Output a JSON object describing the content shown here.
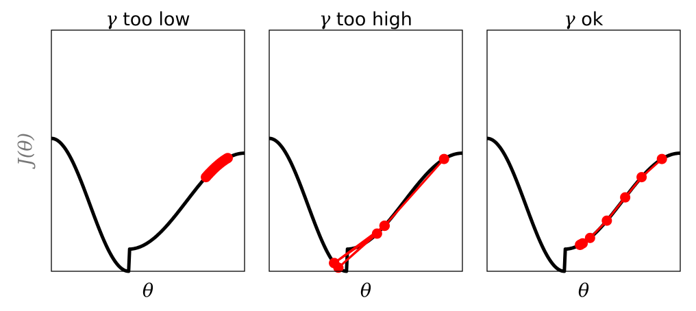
{
  "chart_data": [
    {
      "type": "line",
      "title": "γ too low",
      "title_symbol": "γ",
      "title_text": "too low",
      "xlabel": "θ",
      "ylabel": "J(θ)",
      "curve_color": "#000000",
      "path_color": "#ff0000",
      "grid": false,
      "ticks": false,
      "steps": [
        0.8,
        0.805,
        0.81,
        0.815,
        0.82,
        0.827,
        0.834,
        0.842,
        0.85,
        0.858,
        0.866,
        0.874,
        0.882,
        0.89,
        0.896,
        0.902,
        0.908,
        0.913
      ]
    },
    {
      "type": "line",
      "title": "γ too high",
      "title_symbol": "γ",
      "title_text": "too high",
      "xlabel": "θ",
      "ylabel": "",
      "curve_color": "#000000",
      "path_color": "#ff0000",
      "grid": false,
      "ticks": false,
      "steps": [
        0.905,
        0.597,
        0.336,
        0.558,
        0.358,
        0.597,
        0.336,
        0.597,
        0.336,
        0.597,
        0.336
      ]
    },
    {
      "type": "line",
      "title": "γ ok",
      "title_symbol": "γ",
      "title_text": "ok",
      "xlabel": "θ",
      "ylabel": "",
      "curve_color": "#000000",
      "path_color": "#ff0000",
      "grid": false,
      "ticks": false,
      "steps": [
        0.905,
        0.8,
        0.715,
        0.62,
        0.533,
        0.495,
        0.488,
        0.484,
        0.482,
        0.481
      ]
    }
  ]
}
